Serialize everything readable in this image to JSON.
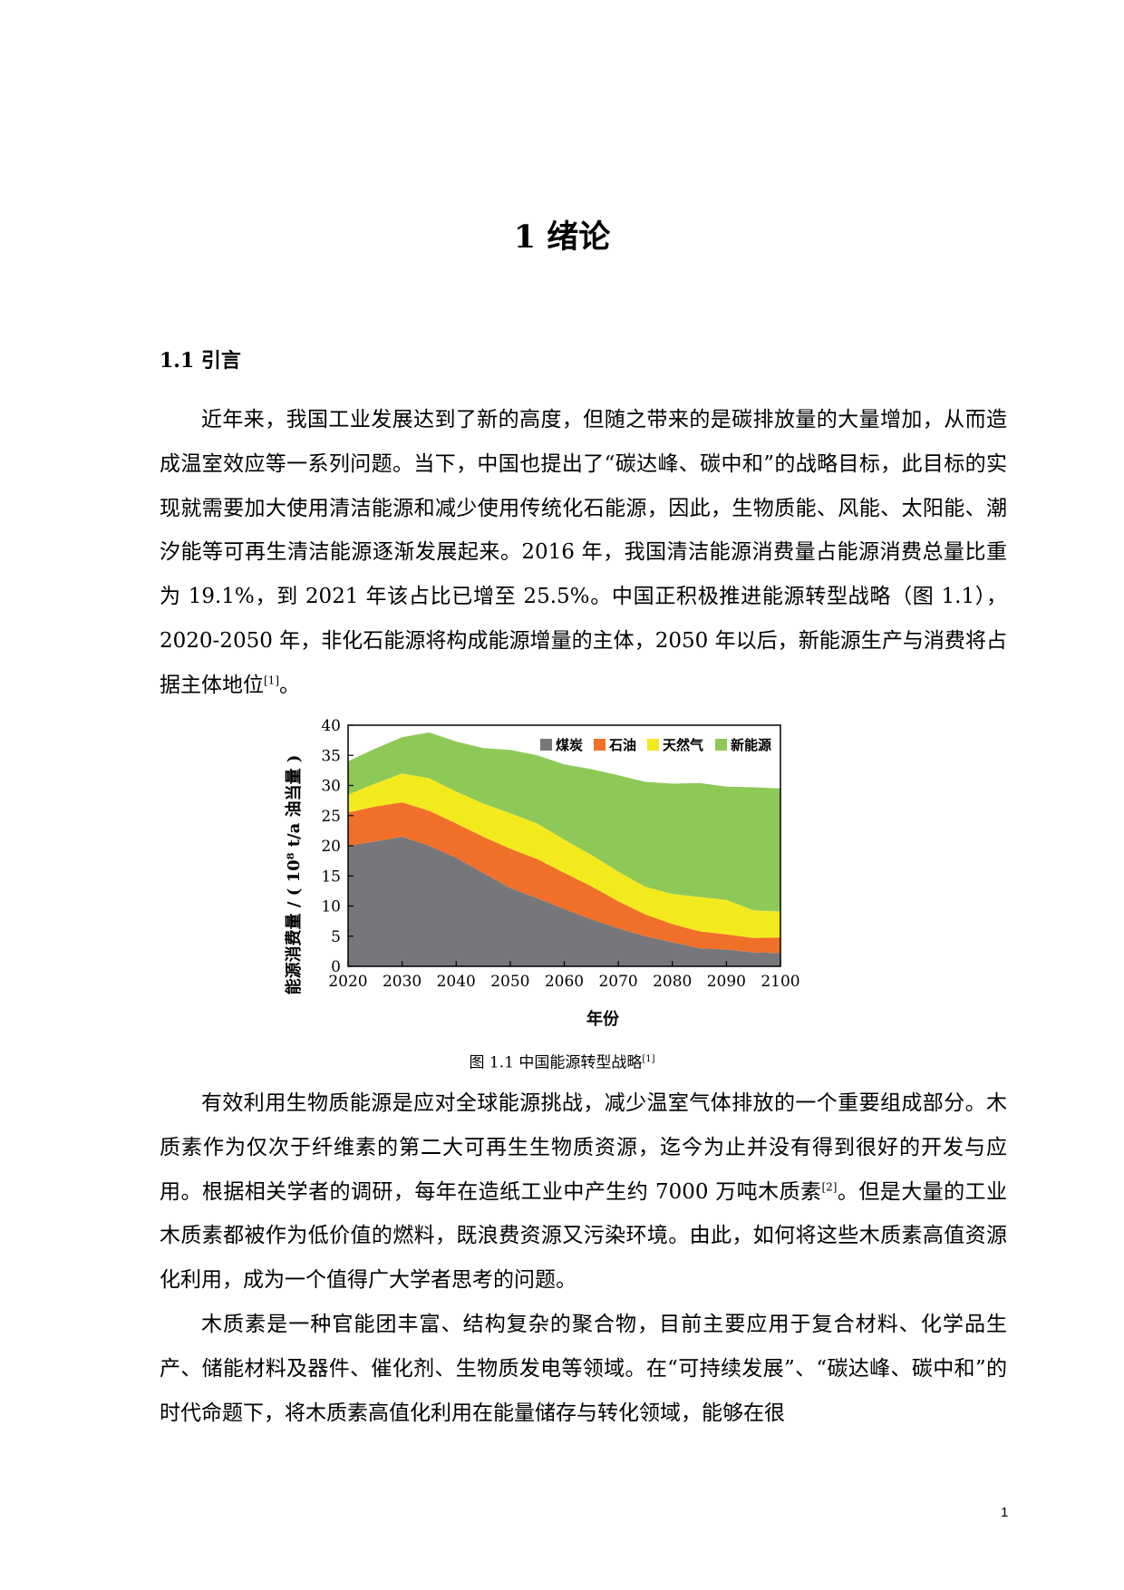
{
  "chapter_title": "1 绪论",
  "section_heading": "1.1 引言",
  "paragraphs": {
    "p1_text": "近年来，我国工业发展达到了新的高度，但随之带来的是碳排放量的大量增加，从而造成温室效应等一系列问题。当下，中国也提出了“碳达峰、碳中和”的战略目标，此目标的实现就需要加大使用清洁能源和减少使用传统化石能源，因此，生物质能、风能、太阳能、潮汐能等可再生清洁能源逐渐发展起来。2016 年，我国清洁能源消费量占能源消费总量比重为 19.1%，到 2021 年该占比已增至 25.5%。中国正积极推进能源转型战略（图 1.1），2020-2050 年，非化石能源将构成能源增量的主体，2050 年以后，新能源生产与消费将占据主体地位",
    "p1_ref": "[1]",
    "p1_end": "。",
    "p2_text": "有效利用生物质能源是应对全球能源挑战，减少温室气体排放的一个重要组成部分。木质素作为仅次于纤维素的第二大可再生生物质资源，迄今为止并没有得到很好的开发与应用。根据相关学者的调研，每年在造纸工业中产生约 7000 万吨木质素",
    "p2_ref": "[2]",
    "p2_end": "。但是大量的工业木质素都被作为低价值的燃料，既浪费资源又污染环境。由此，如何将这些木质素高值资源化利用，成为一个值得广大学者思考的问题。",
    "p3_text": "木质素是一种官能团丰富、结构复杂的聚合物，目前主要应用于复合材料、化学品生产、储能材料及器件、催化剂、生物质发电等领域。在“可持续发展”、“碳达峰、碳中和”的时代命题下，将木质素高值化利用在能量储存与转化领域，能够在很"
  },
  "figure": {
    "caption": "图 1.1 中国能源转型战略",
    "caption_ref": "[1]"
  },
  "page_number": "1",
  "chart_data": {
    "type": "area",
    "stacked": true,
    "xlabel": "年份",
    "ylabel": "能源消费量 / ( 10⁸ t/a 油当量 )",
    "xlim": [
      2020,
      2100
    ],
    "ylim": [
      0,
      40
    ],
    "x_ticks": [
      2020,
      2030,
      2040,
      2050,
      2060,
      2070,
      2080,
      2090,
      2100
    ],
    "y_ticks": [
      0,
      5,
      10,
      15,
      20,
      25,
      30,
      35,
      40
    ],
    "legend_position": "top-right",
    "x": [
      2020,
      2025,
      2030,
      2035,
      2040,
      2045,
      2050,
      2055,
      2060,
      2065,
      2070,
      2075,
      2080,
      2085,
      2090,
      2095,
      2100
    ],
    "series": [
      {
        "name": "煤炭",
        "color": "#77777b",
        "values": [
          20.0,
          20.7,
          21.5,
          20.0,
          18.0,
          15.5,
          13.0,
          11.3,
          9.5,
          7.8,
          6.3,
          5.0,
          4.0,
          3.0,
          2.8,
          2.3,
          2.2
        ]
      },
      {
        "name": "石油",
        "color": "#f0702a",
        "values": [
          5.5,
          5.8,
          5.7,
          5.8,
          5.7,
          6.0,
          6.5,
          6.5,
          6.0,
          5.5,
          4.5,
          3.6,
          3.0,
          2.8,
          2.5,
          2.4,
          2.6
        ]
      },
      {
        "name": "天然气",
        "color": "#f3ea1e",
        "values": [
          3.0,
          3.8,
          4.8,
          5.4,
          5.3,
          5.5,
          5.9,
          5.9,
          5.5,
          5.2,
          4.9,
          4.6,
          5.0,
          5.7,
          5.7,
          4.6,
          4.3
        ]
      },
      {
        "name": "新能源",
        "color": "#8ec957",
        "values": [
          5.5,
          5.8,
          6.0,
          7.6,
          8.3,
          9.2,
          10.5,
          11.3,
          12.5,
          14.2,
          16.0,
          17.4,
          18.3,
          18.9,
          18.8,
          20.4,
          20.4
        ]
      }
    ]
  }
}
